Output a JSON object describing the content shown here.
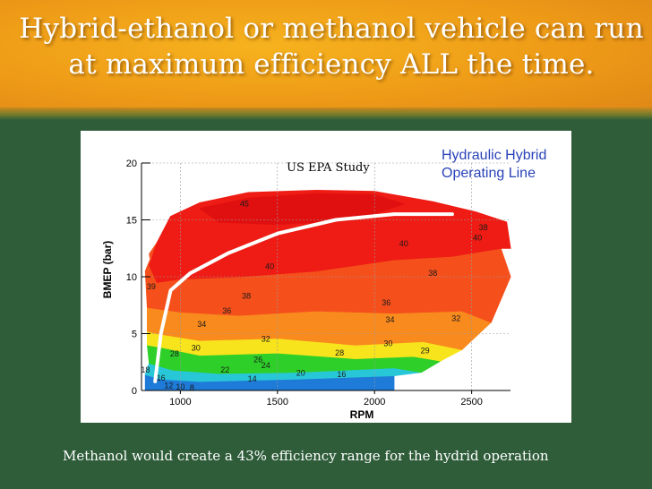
{
  "slide": {
    "title": "Hybrid-ethanol or methanol vehicle can run at maximum efficiency ALL the time.",
    "caption": "Methanol would create a 43% efficiency range for the hydrid operation"
  },
  "chart_data": {
    "type": "heatmap",
    "title": "US EPA Study",
    "annotation": "Hydraulic Hybrid Operating Line",
    "xlabel": "RPM",
    "ylabel": "BMEP (bar)",
    "xlim": [
      800,
      2700
    ],
    "ylim": [
      0,
      20
    ],
    "x_ticks": [
      1000,
      1500,
      2000,
      2500
    ],
    "y_ticks": [
      0,
      5,
      10,
      15,
      20
    ],
    "grid": true,
    "contour_labels": [
      {
        "text": "45",
        "x": 1330,
        "y": 16.5
      },
      {
        "text": "40",
        "x": 1460,
        "y": 11.0
      },
      {
        "text": "40",
        "x": 2150,
        "y": 13.0
      },
      {
        "text": "40",
        "x": 2530,
        "y": 13.5
      },
      {
        "text": "38",
        "x": 2560,
        "y": 14.4
      },
      {
        "text": "39",
        "x": 850,
        "y": 9.2
      },
      {
        "text": "38",
        "x": 1340,
        "y": 8.4
      },
      {
        "text": "38",
        "x": 2300,
        "y": 10.4
      },
      {
        "text": "36",
        "x": 1240,
        "y": 7.1
      },
      {
        "text": "36",
        "x": 2060,
        "y": 7.8
      },
      {
        "text": "34",
        "x": 1110,
        "y": 5.9
      },
      {
        "text": "34",
        "x": 2080,
        "y": 6.3
      },
      {
        "text": "32",
        "x": 1440,
        "y": 4.6
      },
      {
        "text": "32",
        "x": 2420,
        "y": 6.4
      },
      {
        "text": "30",
        "x": 1080,
        "y": 3.8
      },
      {
        "text": "30",
        "x": 2070,
        "y": 4.2
      },
      {
        "text": "29",
        "x": 2260,
        "y": 3.6
      },
      {
        "text": "28",
        "x": 970,
        "y": 3.3
      },
      {
        "text": "28",
        "x": 1820,
        "y": 3.4
      },
      {
        "text": "26",
        "x": 1400,
        "y": 2.8
      },
      {
        "text": "24",
        "x": 1440,
        "y": 2.3
      },
      {
        "text": "22",
        "x": 1230,
        "y": 1.9
      },
      {
        "text": "20",
        "x": 1620,
        "y": 1.6
      },
      {
        "text": "18",
        "x": 820,
        "y": 1.9
      },
      {
        "text": "16",
        "x": 900,
        "y": 1.2
      },
      {
        "text": "16",
        "x": 1830,
        "y": 1.5
      },
      {
        "text": "14",
        "x": 1370,
        "y": 1.1
      },
      {
        "text": "12",
        "x": 940,
        "y": 0.5
      },
      {
        "text": "10",
        "x": 1000,
        "y": 0.4
      },
      {
        "text": "8",
        "x": 1060,
        "y": 0.3
      }
    ],
    "operating_line": [
      [
        870,
        0.8
      ],
      [
        900,
        5
      ],
      [
        950,
        8.8
      ],
      [
        1050,
        10.3
      ],
      [
        1250,
        12.1
      ],
      [
        1500,
        13.8
      ],
      [
        1800,
        15.0
      ],
      [
        2100,
        15.5
      ],
      [
        2400,
        15.5
      ]
    ],
    "colors": {
      "red": "#ee1c14",
      "dark_red": "#e01010",
      "orange_red": "#f5501c",
      "orange": "#f98a1e",
      "yellow": "#f7e41c",
      "green": "#2ecf28",
      "cyan": "#28c7d8",
      "blue": "#1e7bd8"
    }
  }
}
